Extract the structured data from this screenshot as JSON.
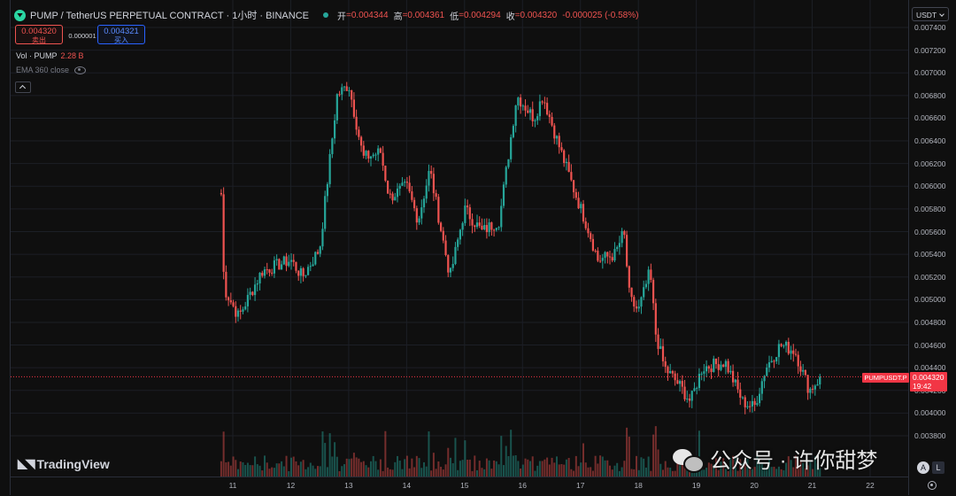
{
  "header": {
    "title": "PUMP / TetherUS PERPETUAL CONTRACT · 1小时 · BINANCE",
    "ohlc": [
      {
        "k": "开",
        "v": "=0.004344"
      },
      {
        "k": "高",
        "v": "=0.004361"
      },
      {
        "k": "低",
        "v": "=0.004294"
      },
      {
        "k": "收",
        "v": "=0.004320"
      }
    ],
    "change": "-0.000025 (-0.58%)"
  },
  "trade": {
    "sell_price": "0.004320",
    "sell_label": "卖出",
    "spread": "0.000001",
    "buy_price": "0.004321",
    "buy_label": "买入"
  },
  "indicators": {
    "vol_label": "Vol · PUMP",
    "vol_value": "2.28 B",
    "ema_label": "EMA 360 close"
  },
  "price_axis": {
    "currency": "USDT",
    "ticks": [
      "0.007400",
      "0.007200",
      "0.007000",
      "0.006800",
      "0.006600",
      "0.006400",
      "0.006200",
      "0.006000",
      "0.005800",
      "0.005600",
      "0.005400",
      "0.005200",
      "0.005000",
      "0.004800",
      "0.004600",
      "0.004400",
      "0.004200",
      "0.004000",
      "0.003800"
    ],
    "last_price": "0.004320",
    "countdown": "19:42",
    "symbol_label": "PUMPUSDT.P"
  },
  "time_axis": {
    "ticks": [
      "11",
      "12",
      "13",
      "14",
      "15",
      "16",
      "17",
      "18",
      "19",
      "20",
      "21",
      "22"
    ]
  },
  "buttons": {
    "auto": "A",
    "log": "L"
  },
  "branding": {
    "logo": "TradingView",
    "watermark": "公众号 · 许你甜梦"
  },
  "colors": {
    "up": "#26a69a",
    "down": "#ef5350",
    "last_line": "#f23645",
    "background": "#0f0f0f"
  },
  "chart_data": {
    "type": "candlestick",
    "interval": "1小时",
    "y_scale": "linear",
    "ylim": [
      0.0037,
      0.0075
    ],
    "x_range_days": [
      10.5,
      22.5
    ],
    "keypoints_close": [
      {
        "day": 10.8,
        "price": 0.00593
      },
      {
        "day": 10.85,
        "price": 0.0051
      },
      {
        "day": 11.1,
        "price": 0.00485
      },
      {
        "day": 11.5,
        "price": 0.00525
      },
      {
        "day": 12.0,
        "price": 0.00535
      },
      {
        "day": 12.2,
        "price": 0.0052
      },
      {
        "day": 12.5,
        "price": 0.00545
      },
      {
        "day": 12.8,
        "price": 0.0068
      },
      {
        "day": 13.0,
        "price": 0.0069
      },
      {
        "day": 13.25,
        "price": 0.00625
      },
      {
        "day": 13.55,
        "price": 0.0063
      },
      {
        "day": 13.7,
        "price": 0.0059
      },
      {
        "day": 14.0,
        "price": 0.006
      },
      {
        "day": 14.2,
        "price": 0.0057
      },
      {
        "day": 14.4,
        "price": 0.00615
      },
      {
        "day": 14.6,
        "price": 0.0056
      },
      {
        "day": 14.75,
        "price": 0.0052
      },
      {
        "day": 15.0,
        "price": 0.0058
      },
      {
        "day": 15.3,
        "price": 0.0056
      },
      {
        "day": 15.6,
        "price": 0.0057
      },
      {
        "day": 15.9,
        "price": 0.0068
      },
      {
        "day": 16.2,
        "price": 0.0066
      },
      {
        "day": 16.35,
        "price": 0.0068
      },
      {
        "day": 16.6,
        "price": 0.0064
      },
      {
        "day": 16.9,
        "price": 0.00595
      },
      {
        "day": 17.15,
        "price": 0.0056
      },
      {
        "day": 17.3,
        "price": 0.00535
      },
      {
        "day": 17.6,
        "price": 0.0054
      },
      {
        "day": 17.75,
        "price": 0.0056
      },
      {
        "day": 17.85,
        "price": 0.005
      },
      {
        "day": 18.0,
        "price": 0.0049
      },
      {
        "day": 18.2,
        "price": 0.00525
      },
      {
        "day": 18.3,
        "price": 0.0047
      },
      {
        "day": 18.45,
        "price": 0.0044
      },
      {
        "day": 18.7,
        "price": 0.00425
      },
      {
        "day": 18.9,
        "price": 0.0041
      },
      {
        "day": 19.1,
        "price": 0.0044
      },
      {
        "day": 19.5,
        "price": 0.00445
      },
      {
        "day": 19.8,
        "price": 0.0041
      },
      {
        "day": 20.0,
        "price": 0.00405
      },
      {
        "day": 20.2,
        "price": 0.0044
      },
      {
        "day": 20.45,
        "price": 0.0046
      },
      {
        "day": 20.7,
        "price": 0.00455
      },
      {
        "day": 20.95,
        "price": 0.0042
      },
      {
        "day": 21.15,
        "price": 0.00432
      }
    ],
    "last_close": 0.00432
  }
}
